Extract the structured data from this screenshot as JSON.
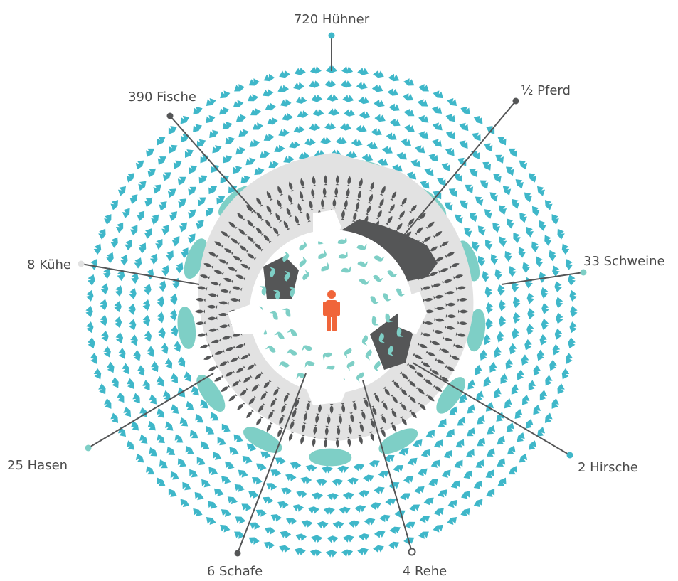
{
  "colors": {
    "chicken": "#3fb7c9",
    "pig": "#7ecfc6",
    "fish": "#555657",
    "cow": "#e2e2e2",
    "horse": "#555657",
    "human": "#f0653a",
    "line": "#555657",
    "text": "#4a4a4a"
  },
  "labels": {
    "chickens": "720 Hühner",
    "horse": "½ Pferd",
    "fish": "390 Fische",
    "pigs": "33 Schweine",
    "cows": "8 Kühe",
    "rabbits": "25 Hasen",
    "deer": "2 Hirsche",
    "sheep": "6 Schafe",
    "roe": "4 Rehe"
  },
  "icons": {
    "center": "human-icon",
    "chickens": "chicken-icon",
    "fish": "fish-icon",
    "pigs": "pig-icon",
    "cows": "cow-icon",
    "rabbits": "rabbit-icon",
    "horse": "horse-icon",
    "deer": "deer-icon",
    "sheep": "sheep-icon",
    "roe": "roe-icon"
  }
}
